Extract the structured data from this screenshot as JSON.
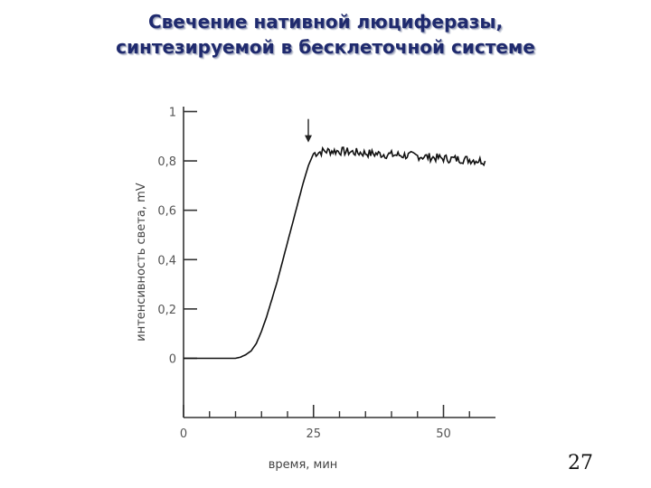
{
  "slide": {
    "title_line1": "Свечение нативной люциферазы,",
    "title_line2": "синтезируемой в бесклеточной системе",
    "page_number": "27"
  },
  "chart_data": {
    "type": "line",
    "xlabel": "время, мин",
    "ylabel": "интенсивность света, mV",
    "xlim": [
      0,
      60
    ],
    "ylim": [
      -0.24,
      1.02
    ],
    "x_ticks": [
      0,
      25,
      50
    ],
    "y_ticks": [
      0,
      0.2,
      0.4,
      0.6,
      0.8,
      1
    ],
    "x_tick_labels": [
      "0",
      "25",
      "50"
    ],
    "y_tick_labels": [
      "0",
      "0,2",
      "0,4",
      "0,6",
      "0,8",
      "1"
    ],
    "x_minor_ticks": [
      5,
      10,
      15,
      20,
      30,
      35,
      40,
      45,
      55
    ],
    "arrow_annotation": {
      "x": 24,
      "y": 0.86
    },
    "series": [
      {
        "x": [
          0,
          5,
          10,
          11,
          12,
          13,
          14,
          15,
          16,
          17,
          18,
          19,
          20,
          21,
          22,
          23,
          24,
          25,
          27,
          30,
          33,
          36,
          40,
          45,
          50,
          55,
          58
        ],
        "y": [
          0,
          0,
          0,
          0.005,
          0.015,
          0.03,
          0.06,
          0.11,
          0.17,
          0.24,
          0.31,
          0.39,
          0.47,
          0.55,
          0.63,
          0.71,
          0.78,
          0.83,
          0.84,
          0.84,
          0.835,
          0.83,
          0.825,
          0.82,
          0.81,
          0.805,
          0.8
        ]
      }
    ],
    "grid": false,
    "colors": {
      "line": "#111111",
      "axis": "#333333",
      "tick_label": "#555555"
    }
  }
}
